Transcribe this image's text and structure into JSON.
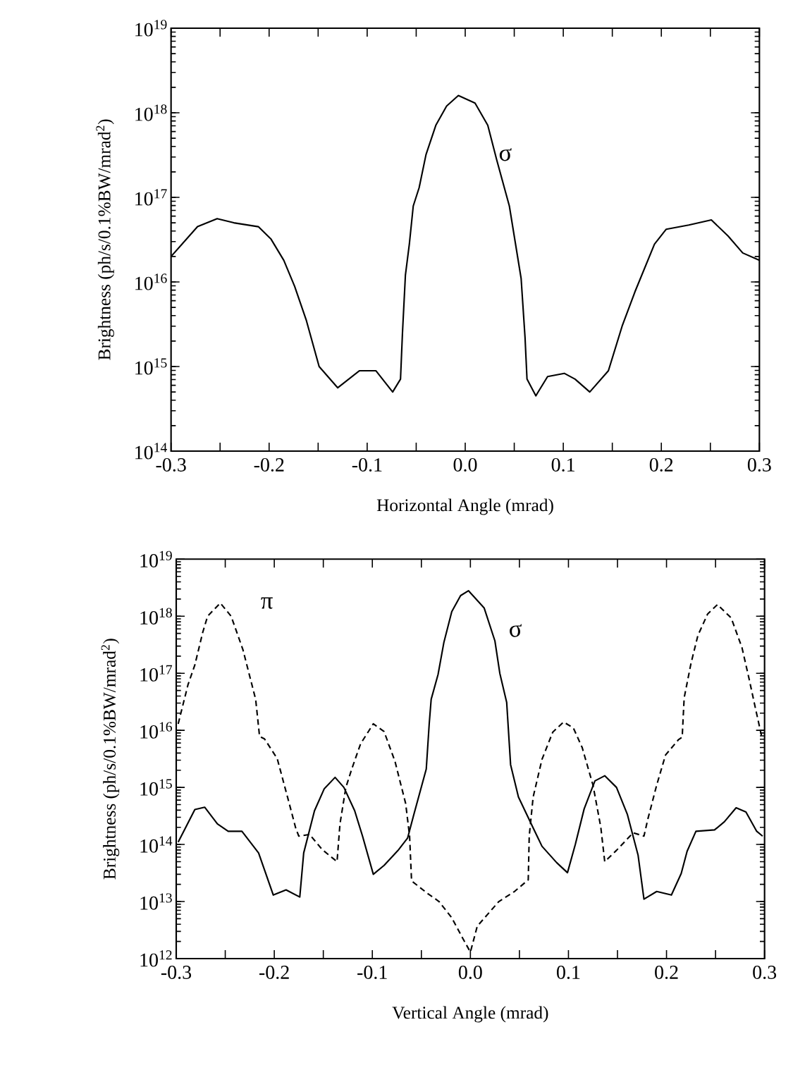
{
  "chart_data": [
    {
      "type": "line",
      "xlabel": "Horizontal Angle (mrad)",
      "ylabel": "Brightness  (ph/s/0.1%BW/mrad$^{2}$)",
      "log": "y",
      "xlim": [
        -0.3,
        0.3
      ],
      "xticks": [
        -0.3,
        {
          "value": -0.25,
          "label": null
        },
        -0.2,
        {
          "value": -0.15,
          "label": null
        },
        -0.1,
        {
          "value": -0.05,
          "label": null
        },
        {
          "value": 0,
          "label": "0.0"
        },
        {
          "value": 0.05,
          "label": null
        },
        0.1,
        {
          "value": 0.15,
          "label": null
        },
        0.2,
        {
          "value": 0.25,
          "label": null
        },
        0.3
      ],
      "ylim": [
        100000000000000.0,
        1e+19
      ],
      "yticks": [
        {
          "value": 100000000000000.0,
          "label": "10$^{14}$"
        },
        {
          "value": 1000000000000000.0,
          "label": "10$^{15}$"
        },
        {
          "value": 1e+16,
          "label": "10$^{16}$"
        },
        {
          "value": 1e+17,
          "label": "10$^{17}$"
        },
        {
          "value": 1e+18,
          "label": "10$^{18}$"
        },
        {
          "value": 1e+19,
          "label": "10$^{19}$"
        }
      ],
      "series": [
        {
          "name": "σ",
          "color": "#000000",
          "line_style": "solid",
          "x": [
            -0.3,
            -0.273,
            -0.253,
            -0.236,
            -0.211,
            -0.198,
            -0.185,
            -0.174,
            -0.162,
            -0.149,
            -0.13,
            -0.108,
            -0.091,
            -0.074,
            -0.066,
            -0.064,
            -0.061,
            -0.057,
            -0.053,
            -0.047,
            -0.04,
            -0.03,
            -0.019,
            -0.007,
            0.01,
            0.023,
            0.032,
            0.045,
            0.057,
            0.061,
            0.063,
            0.072,
            0.084,
            0.101,
            0.112,
            0.127,
            0.146,
            0.16,
            0.173,
            0.193,
            0.205,
            0.228,
            0.251,
            0.268,
            0.283,
            0.3
          ],
          "values": [
            2e+16,
            4.5e+16,
            5.6e+16,
            5e+16,
            4.5e+16,
            3.2e+16,
            1.8e+16,
            8900000000000000.0,
            3500000000000000.0,
            1000000000000000.0,
            560000000000000.0,
            890000000000000.0,
            890000000000000.0,
            500000000000000.0,
            710000000000000.0,
            2500000000000000.0,
            1.2e+16,
            2.8e+16,
            7.9e+16,
            1.3e+17,
            3.2e+17,
            7.1e+17,
            1.2e+18,
            1.6e+18,
            1.3e+18,
            7.1e+17,
            2.8e+17,
            7.9e+16,
            1.1e+16,
            2200000000000000.0,
            710000000000000.0,
            450000000000000.0,
            760000000000000.0,
            830000000000000.0,
            710000000000000.0,
            500000000000000.0,
            890000000000000.0,
            3000000000000000.0,
            7600000000000000.0,
            2.8e+16,
            4.2e+16,
            4.7e+16,
            5.4e+16,
            3.5e+16,
            2.2e+16,
            1.8e+16
          ]
        }
      ]
    },
    {
      "type": "line",
      "xlabel": "Vertical Angle (mrad)",
      "ylabel": "Brightness  (ph/s/0.1%BW/mrad$^{2}$)",
      "log": "y",
      "xlim": [
        -0.3,
        0.3
      ],
      "xticks": [
        -0.3,
        {
          "value": -0.25,
          "label": null
        },
        -0.2,
        {
          "value": -0.15,
          "label": null
        },
        -0.1,
        {
          "value": -0.05,
          "label": null
        },
        {
          "value": 0,
          "label": "0.0"
        },
        {
          "value": 0.05,
          "label": null
        },
        0.1,
        {
          "value": 0.15,
          "label": null
        },
        0.2,
        {
          "value": 0.25,
          "label": null
        },
        0.3
      ],
      "ylim": [
        1000000000000.0,
        1e+19
      ],
      "yticks": [
        {
          "value": 1000000000000.0,
          "label": "10$^{12}$"
        },
        {
          "value": 10000000000000.0,
          "label": "10$^{13}$"
        },
        {
          "value": 100000000000000.0,
          "label": "10$^{14}$"
        },
        {
          "value": 1000000000000000.0,
          "label": "10$^{15}$"
        },
        {
          "value": 1e+16,
          "label": "10$^{16}$"
        },
        {
          "value": 1e+17,
          "label": "10$^{17}$"
        },
        {
          "value": 1e+18,
          "label": "10$^{18}$"
        },
        {
          "value": 1e+19,
          "label": "10$^{19}$"
        }
      ],
      "series": [
        {
          "name": "σ",
          "color": "#000000",
          "line_style": "solid",
          "x": [
            -0.298,
            -0.281,
            -0.271,
            -0.258,
            -0.247,
            -0.233,
            -0.216,
            -0.201,
            -0.188,
            -0.174,
            -0.17,
            -0.159,
            -0.149,
            -0.138,
            -0.129,
            -0.118,
            -0.11,
            -0.099,
            -0.088,
            -0.074,
            -0.064,
            -0.058,
            -0.045,
            -0.042,
            -0.04,
            -0.033,
            -0.027,
            -0.019,
            -0.01,
            -0.002,
            0.014,
            0.025,
            0.03,
            0.037,
            0.041,
            0.049,
            0.062,
            0.073,
            0.088,
            0.099,
            0.107,
            0.116,
            0.127,
            0.137,
            0.149,
            0.16,
            0.171,
            0.177,
            0.19,
            0.205,
            0.215,
            0.221,
            0.23,
            0.249,
            0.259,
            0.271,
            0.281,
            0.292,
            0.298
          ],
          "values": [
            110000000000000.0,
            410000000000000.0,
            450000000000000.0,
            230000000000000.0,
            170000000000000.0,
            170000000000000.0,
            71000000000000.0,
            13000000000000.0,
            16000000000000.0,
            12000000000000.0,
            71000000000000.0,
            390000000000000.0,
            950000000000000.0,
            1500000000000000.0,
            1000000000000000.0,
            390000000000000.0,
            140000000000000.0,
            30000000000000.0,
            43000000000000.0,
            78000000000000.0,
            130000000000000.0,
            320000000000000.0,
            2100000000000000.0,
            1.3e+16,
            3.5e+16,
            9.5e+16,
            3.5e+17,
            1.2e+18,
            2.3e+18,
            2.8e+18,
            1.4e+18,
            3.7e+17,
            1e+17,
            3.1e+16,
            2500000000000000.0,
            680000000000000.0,
            230000000000000.0,
            93000000000000.0,
            48000000000000.0,
            32000000000000.0,
            100000000000000.0,
            420000000000000.0,
            1300000000000000.0,
            1600000000000000.0,
            1000000000000000.0,
            340000000000000.0,
            65000000000000.0,
            11000000000000.0,
            15000000000000.0,
            13000000000000.0,
            31000000000000.0,
            76000000000000.0,
            170000000000000.0,
            180000000000000.0,
            250000000000000.0,
            440000000000000.0,
            370000000000000.0,
            170000000000000.0,
            140000000000000.0
          ]
        },
        {
          "name": "π",
          "color": "#000000",
          "line_style": "dashed",
          "x": [
            -0.298,
            -0.288,
            -0.281,
            -0.273,
            -0.268,
            -0.255,
            -0.244,
            -0.232,
            -0.219,
            -0.215,
            -0.21,
            -0.197,
            -0.186,
            -0.178,
            -0.175,
            -0.164,
            -0.151,
            -0.136,
            -0.133,
            -0.127,
            -0.121,
            -0.112,
            -0.099,
            -0.088,
            -0.077,
            -0.066,
            -0.062,
            -0.06,
            -0.044,
            -0.032,
            -0.019,
            -0.008,
            0.0,
            0.007,
            0.029,
            0.045,
            0.059,
            0.06,
            0.064,
            0.073,
            0.084,
            0.095,
            0.105,
            0.114,
            0.125,
            0.133,
            0.137,
            0.149,
            0.166,
            0.177,
            0.181,
            0.19,
            0.199,
            0.212,
            0.216,
            0.218,
            0.225,
            0.232,
            0.242,
            0.252,
            0.266,
            0.277,
            0.284,
            0.291,
            0.297
          ],
          "values": [
            1.3e+16,
            6.3e+16,
            1.4e+17,
            5.2e+17,
            1e+18,
            1.7e+18,
            1e+18,
            2.6e+17,
            3.5e+16,
            7800000000000000.0,
            7100000000000000.0,
            3200000000000000.0,
            630000000000000.0,
            190000000000000.0,
            140000000000000.0,
            150000000000000.0,
            81000000000000.0,
            50000000000000.0,
            230000000000000.0,
            1000000000000000.0,
            2100000000000000.0,
            5800000000000000.0,
            1.3e+16,
            9500000000000000.0,
            2900000000000000.0,
            520000000000000.0,
            140000000000000.0,
            23000000000000.0,
            14000000000000.0,
            10000000000000.0,
            5200000000000.0,
            2300000000000.0,
            1300000000000.0,
            3700000000000.0,
            10000000000000.0,
            15000000000000.0,
            24000000000000.0,
            140000000000000.0,
            680000000000000.0,
            3100000000000000.0,
            9300000000000000.0,
            1.4e+16,
            1.1e+16,
            5000000000000000.0,
            1100000000000000.0,
            200000000000000.0,
            50000000000000.0,
            79000000000000.0,
            160000000000000.0,
            140000000000000.0,
            280000000000000.0,
            1100000000000000.0,
            3700000000000000.0,
            6800000000000000.0,
            7600000000000000.0,
            3.7e+16,
            1.5e+17,
            4.6e+17,
            1.1e+18,
            1.6e+18,
            9.3e+17,
            2.8e+17,
            8.3e+16,
            2.3e+16,
            7900000000000000.0
          ]
        }
      ]
    }
  ]
}
